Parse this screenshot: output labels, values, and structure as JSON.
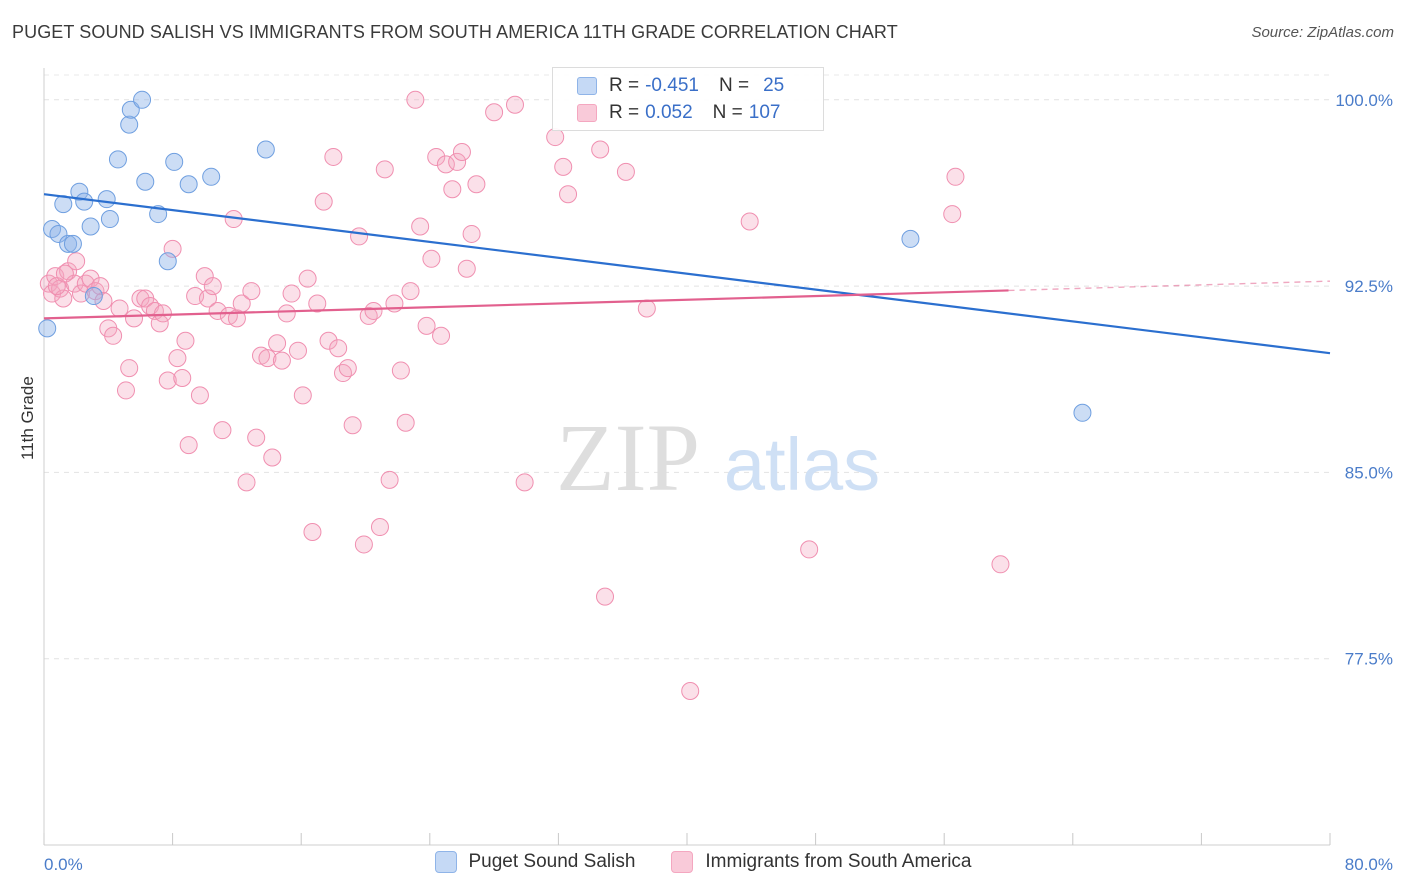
{
  "title": "PUGET SOUND SALISH VS IMMIGRANTS FROM SOUTH AMERICA 11TH GRADE CORRELATION CHART",
  "source": "Source: ZipAtlas.com",
  "watermark": {
    "zip": "ZIP",
    "atlas": "atlas"
  },
  "legend": {
    "rows": [
      {
        "r_label": "R =",
        "r_value": "-0.451",
        "n_label": "N =",
        "n_value": "25"
      },
      {
        "r_label": "R =",
        "r_value": "0.052",
        "n_label": "N =",
        "n_value": "107"
      }
    ]
  },
  "chart_data": {
    "type": "scatter",
    "xlabel": "",
    "ylabel": "11th Grade",
    "xlim": [
      0,
      80
    ],
    "ylim": [
      70,
      101.2
    ],
    "x_tick_labels": [
      "0.0%",
      "80.0%"
    ],
    "y_ticks": [
      77.5,
      85.0,
      92.5,
      100.0
    ],
    "y_tick_labels": [
      "77.5%",
      "85.0%",
      "92.5%",
      "100.0%"
    ],
    "grid": "horizontal dashed",
    "legend_position": "bottom",
    "series": [
      {
        "name": "Puget Sound Salish",
        "color": "#8fb4e8",
        "line_color": "#2b6fcf",
        "trend": {
          "x": [
            0,
            80
          ],
          "y": [
            96.2,
            89.8
          ]
        },
        "points": [
          [
            0.2,
            90.8
          ],
          [
            0.5,
            94.8
          ],
          [
            0.9,
            94.6
          ],
          [
            1.2,
            95.8
          ],
          [
            1.5,
            94.2
          ],
          [
            1.8,
            94.2
          ],
          [
            2.2,
            96.3
          ],
          [
            2.5,
            95.9
          ],
          [
            2.9,
            94.9
          ],
          [
            3.1,
            92.1
          ],
          [
            3.9,
            96.0
          ],
          [
            4.1,
            95.2
          ],
          [
            4.6,
            97.6
          ],
          [
            5.3,
            99.0
          ],
          [
            5.4,
            99.6
          ],
          [
            6.1,
            100.0
          ],
          [
            6.3,
            96.7
          ],
          [
            7.1,
            95.4
          ],
          [
            7.7,
            93.5
          ],
          [
            8.1,
            97.5
          ],
          [
            9.0,
            96.6
          ],
          [
            10.4,
            96.9
          ],
          [
            13.8,
            98.0
          ],
          [
            53.9,
            94.4
          ],
          [
            64.6,
            87.4
          ]
        ]
      },
      {
        "name": "Immigrants from South America",
        "color": "#f4a7c0",
        "line_color": "#e2608e",
        "trend": {
          "x": [
            0,
            80
          ],
          "y": [
            91.2,
            92.7
          ]
        },
        "trend_solid_until": 60,
        "points": [
          [
            0.3,
            92.6
          ],
          [
            0.5,
            92.2
          ],
          [
            0.7,
            92.9
          ],
          [
            1.0,
            92.4
          ],
          [
            1.2,
            92.0
          ],
          [
            1.5,
            93.1
          ],
          [
            1.9,
            92.6
          ],
          [
            2.0,
            93.5
          ],
          [
            2.3,
            92.2
          ],
          [
            2.6,
            92.6
          ],
          [
            2.9,
            92.8
          ],
          [
            3.2,
            92.3
          ],
          [
            3.5,
            92.5
          ],
          [
            3.7,
            91.9
          ],
          [
            4.0,
            90.8
          ],
          [
            4.3,
            90.5
          ],
          [
            4.7,
            91.6
          ],
          [
            5.1,
            88.3
          ],
          [
            5.3,
            89.2
          ],
          [
            5.6,
            91.2
          ],
          [
            6.0,
            92.0
          ],
          [
            6.3,
            92.0
          ],
          [
            6.6,
            91.7
          ],
          [
            6.9,
            91.5
          ],
          [
            7.2,
            91.0
          ],
          [
            7.4,
            91.4
          ],
          [
            7.7,
            88.7
          ],
          [
            8.0,
            94.0
          ],
          [
            8.3,
            89.6
          ],
          [
            8.6,
            88.8
          ],
          [
            8.8,
            90.3
          ],
          [
            9.0,
            86.1
          ],
          [
            9.4,
            92.1
          ],
          [
            9.7,
            88.1
          ],
          [
            10.0,
            92.9
          ],
          [
            10.2,
            92.0
          ],
          [
            10.5,
            92.5
          ],
          [
            10.8,
            91.5
          ],
          [
            11.1,
            86.7
          ],
          [
            11.5,
            91.3
          ],
          [
            11.8,
            95.2
          ],
          [
            12.0,
            91.2
          ],
          [
            12.3,
            91.8
          ],
          [
            12.6,
            84.6
          ],
          [
            12.9,
            92.3
          ],
          [
            13.2,
            86.4
          ],
          [
            13.5,
            89.7
          ],
          [
            13.9,
            89.6
          ],
          [
            14.2,
            85.6
          ],
          [
            14.5,
            90.2
          ],
          [
            14.8,
            89.5
          ],
          [
            15.1,
            91.4
          ],
          [
            15.4,
            92.2
          ],
          [
            15.8,
            89.9
          ],
          [
            16.1,
            88.1
          ],
          [
            16.4,
            92.8
          ],
          [
            16.7,
            82.6
          ],
          [
            17.0,
            91.8
          ],
          [
            17.4,
            95.9
          ],
          [
            17.7,
            90.3
          ],
          [
            18.0,
            97.7
          ],
          [
            18.3,
            90.0
          ],
          [
            18.6,
            89.0
          ],
          [
            18.9,
            89.2
          ],
          [
            19.2,
            86.9
          ],
          [
            19.6,
            94.5
          ],
          [
            19.9,
            82.1
          ],
          [
            20.2,
            91.3
          ],
          [
            20.5,
            91.5
          ],
          [
            20.9,
            82.8
          ],
          [
            21.2,
            97.2
          ],
          [
            21.5,
            84.7
          ],
          [
            21.8,
            91.8
          ],
          [
            22.2,
            89.1
          ],
          [
            22.5,
            87.0
          ],
          [
            22.8,
            92.3
          ],
          [
            23.1,
            100.0
          ],
          [
            23.4,
            94.9
          ],
          [
            23.8,
            90.9
          ],
          [
            24.1,
            93.6
          ],
          [
            24.4,
            97.7
          ],
          [
            24.7,
            90.5
          ],
          [
            25.0,
            97.4
          ],
          [
            25.4,
            96.4
          ],
          [
            25.7,
            97.5
          ],
          [
            26.0,
            97.9
          ],
          [
            26.3,
            93.2
          ],
          [
            26.6,
            94.6
          ],
          [
            26.9,
            96.6
          ],
          [
            28.0,
            99.5
          ],
          [
            29.3,
            99.8
          ],
          [
            29.9,
            84.6
          ],
          [
            31.8,
            98.5
          ],
          [
            32.3,
            97.3
          ],
          [
            32.6,
            96.2
          ],
          [
            34.6,
            98.0
          ],
          [
            34.9,
            80.0
          ],
          [
            36.2,
            97.1
          ],
          [
            37.5,
            91.6
          ],
          [
            40.2,
            76.2
          ],
          [
            43.9,
            95.1
          ],
          [
            47.6,
            81.9
          ],
          [
            56.7,
            96.9
          ],
          [
            56.5,
            95.4
          ],
          [
            59.5,
            81.3
          ],
          [
            0.8,
            92.5
          ],
          [
            1.3,
            93.0
          ]
        ]
      }
    ]
  }
}
